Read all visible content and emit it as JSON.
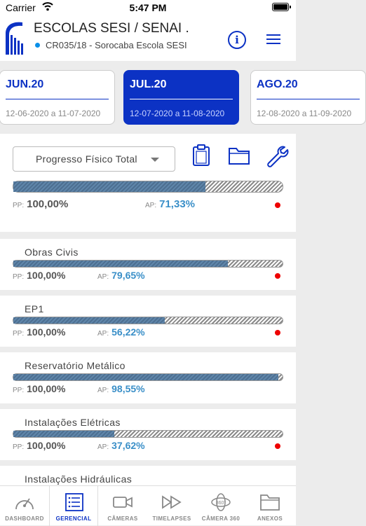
{
  "status_bar": {
    "carrier": "Carrier",
    "time": "5:47 PM"
  },
  "header": {
    "title": "ESCOLAS SESI / SENAI .",
    "subtitle": "CR035/18 - Sorocaba Escola SESI",
    "info_icon": "info-icon",
    "menu_icon": "hamburger-menu-icon",
    "accent": "#0c32c4"
  },
  "periods": [
    {
      "label": "JUN.20",
      "range": "12-06-2020 a 11-07-2020",
      "active": false
    },
    {
      "label": "JUL.20",
      "range": "12-07-2020 a 11-08-2020",
      "active": true
    },
    {
      "label": "AGO.20",
      "range": "12-08-2020 a 11-09-2020",
      "active": false
    }
  ],
  "summary": {
    "dropdown_value": "Progresso Físico Total",
    "pp_label": "PP:",
    "pp_value": "100,00%",
    "ap_label": "AP:",
    "ap_value": "71,33%",
    "progress": 0.7133,
    "tools": [
      "clipboard-icon",
      "folder-icon",
      "wrench-icon"
    ]
  },
  "items": [
    {
      "name": "Obras Civis",
      "pp_label": "PP:",
      "pp_value": "100,00%",
      "ap_label": "AP:",
      "ap_value": "79,65%",
      "progress": 0.7965
    },
    {
      "name": "EP1",
      "pp_label": "PP:",
      "pp_value": "100,00%",
      "ap_label": "AP:",
      "ap_value": "56,22%",
      "progress": 0.5622
    },
    {
      "name": "Reservatório Metálico",
      "pp_label": "PP:",
      "pp_value": "100,00%",
      "ap_label": "AP:",
      "ap_value": "98,55%",
      "progress": 0.9855
    },
    {
      "name": "Instalações Elétricas",
      "pp_label": "PP:",
      "pp_value": "100,00%",
      "ap_label": "AP:",
      "ap_value": "37,62%",
      "progress": 0.3762
    },
    {
      "name": "Instalações Hidráulicas"
    }
  ],
  "tabs": [
    {
      "label": "DASHBOARD",
      "icon": "gauge-icon",
      "active": false
    },
    {
      "label": "GERENCIAL",
      "icon": "list-icon",
      "active": true
    },
    {
      "label": "CÂMERAS",
      "icon": "camera-icon",
      "active": false
    },
    {
      "label": "TIMELAPSES",
      "icon": "fast-forward-icon",
      "active": false
    },
    {
      "label": "CÂMERA 360",
      "icon": "camera-360-icon",
      "active": false
    },
    {
      "label": "ANEXOS",
      "icon": "folder-icon",
      "active": false
    }
  ]
}
